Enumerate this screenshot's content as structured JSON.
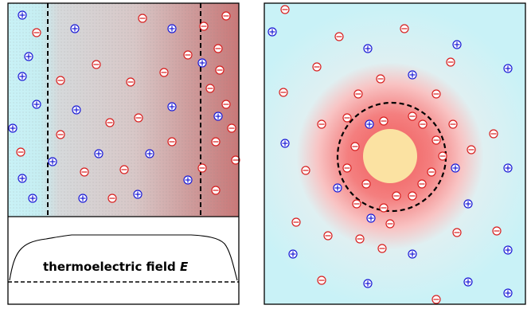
{
  "left_panel": {
    "field_label_main": "thermoelectric field ",
    "field_label_symbol": "E"
  },
  "charges": {
    "positive_color": "#1a1ad6",
    "negative_color": "#d81e1e",
    "positive_symbol": "plus-circle",
    "negative_symbol": "minus-circle"
  },
  "colors": {
    "cool_bg": "#c9f2f7",
    "hot_bg": "#cf7f7f",
    "core": "#fbe2a2",
    "glow": "#f47a7a",
    "border": "#000000"
  }
}
